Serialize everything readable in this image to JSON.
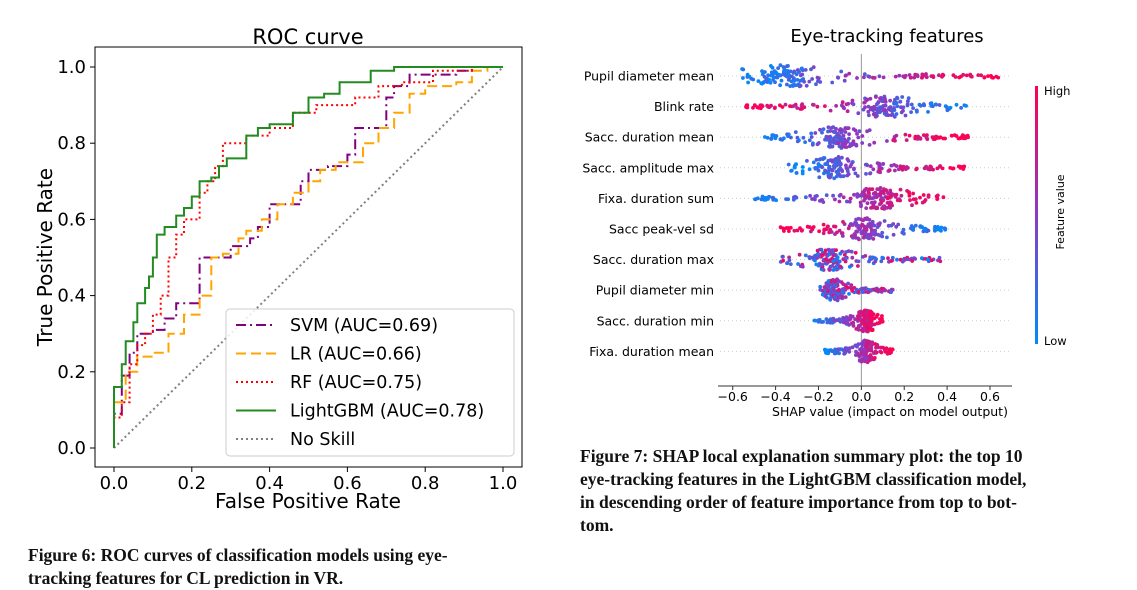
{
  "chart_data": [
    {
      "type": "line",
      "title": "ROC curve",
      "xlabel": "False Positive Rate",
      "ylabel": "True Positive Rate",
      "xlim": [
        0.0,
        1.0
      ],
      "ylim": [
        0.0,
        1.0
      ],
      "xticks": [
        "0.0",
        "0.2",
        "0.4",
        "0.6",
        "0.8",
        "1.0"
      ],
      "yticks": [
        "0.0",
        "0.2",
        "0.4",
        "0.6",
        "0.8",
        "1.0"
      ],
      "grid": false,
      "legend_position": "lower-right",
      "series": [
        {
          "name": "SVM",
          "label": "SVM (AUC=0.69)",
          "color": "#800080",
          "dash": "dashdot",
          "points": [
            [
              0,
              0
            ],
            [
              0,
              0.09
            ],
            [
              0.02,
              0.09
            ],
            [
              0.02,
              0.19
            ],
            [
              0.04,
              0.19
            ],
            [
              0.04,
              0.25
            ],
            [
              0.06,
              0.25
            ],
            [
              0.06,
              0.3
            ],
            [
              0.1,
              0.3
            ],
            [
              0.1,
              0.31
            ],
            [
              0.13,
              0.31
            ],
            [
              0.13,
              0.34
            ],
            [
              0.16,
              0.34
            ],
            [
              0.16,
              0.38
            ],
            [
              0.22,
              0.38
            ],
            [
              0.22,
              0.5
            ],
            [
              0.3,
              0.5
            ],
            [
              0.3,
              0.53
            ],
            [
              0.35,
              0.53
            ],
            [
              0.35,
              0.55
            ],
            [
              0.37,
              0.55
            ],
            [
              0.37,
              0.58
            ],
            [
              0.4,
              0.58
            ],
            [
              0.4,
              0.64
            ],
            [
              0.48,
              0.64
            ],
            [
              0.48,
              0.7
            ],
            [
              0.5,
              0.7
            ],
            [
              0.5,
              0.73
            ],
            [
              0.55,
              0.73
            ],
            [
              0.55,
              0.74
            ],
            [
              0.6,
              0.74
            ],
            [
              0.6,
              0.77
            ],
            [
              0.62,
              0.77
            ],
            [
              0.62,
              0.84
            ],
            [
              0.7,
              0.84
            ],
            [
              0.7,
              0.92
            ],
            [
              0.72,
              0.92
            ],
            [
              0.72,
              0.95
            ],
            [
              0.76,
              0.95
            ],
            [
              0.76,
              0.98
            ],
            [
              0.88,
              0.98
            ],
            [
              0.88,
              0.99
            ],
            [
              0.92,
              0.99
            ],
            [
              0.92,
              1.0
            ],
            [
              1.0,
              1.0
            ]
          ]
        },
        {
          "name": "LR",
          "label": "LR (AUC=0.66)",
          "color": "#FFA500",
          "dash": "dashed",
          "points": [
            [
              0,
              0
            ],
            [
              0,
              0.12
            ],
            [
              0.03,
              0.12
            ],
            [
              0.03,
              0.2
            ],
            [
              0.06,
              0.2
            ],
            [
              0.06,
              0.24
            ],
            [
              0.1,
              0.24
            ],
            [
              0.1,
              0.25
            ],
            [
              0.14,
              0.25
            ],
            [
              0.14,
              0.3
            ],
            [
              0.18,
              0.3
            ],
            [
              0.18,
              0.35
            ],
            [
              0.22,
              0.35
            ],
            [
              0.22,
              0.4
            ],
            [
              0.25,
              0.4
            ],
            [
              0.25,
              0.5
            ],
            [
              0.28,
              0.5
            ],
            [
              0.28,
              0.51
            ],
            [
              0.32,
              0.51
            ],
            [
              0.32,
              0.55
            ],
            [
              0.34,
              0.55
            ],
            [
              0.34,
              0.57
            ],
            [
              0.38,
              0.57
            ],
            [
              0.38,
              0.6
            ],
            [
              0.42,
              0.6
            ],
            [
              0.42,
              0.64
            ],
            [
              0.46,
              0.64
            ],
            [
              0.46,
              0.67
            ],
            [
              0.5,
              0.67
            ],
            [
              0.5,
              0.7
            ],
            [
              0.53,
              0.7
            ],
            [
              0.53,
              0.73
            ],
            [
              0.57,
              0.73
            ],
            [
              0.57,
              0.75
            ],
            [
              0.64,
              0.75
            ],
            [
              0.64,
              0.8
            ],
            [
              0.68,
              0.8
            ],
            [
              0.68,
              0.84
            ],
            [
              0.72,
              0.84
            ],
            [
              0.72,
              0.88
            ],
            [
              0.76,
              0.88
            ],
            [
              0.76,
              0.93
            ],
            [
              0.8,
              0.93
            ],
            [
              0.8,
              0.95
            ],
            [
              0.88,
              0.95
            ],
            [
              0.88,
              0.96
            ],
            [
              0.92,
              0.96
            ],
            [
              0.92,
              0.99
            ],
            [
              0.96,
              0.99
            ],
            [
              0.96,
              1.0
            ],
            [
              1.0,
              1.0
            ]
          ]
        },
        {
          "name": "RF",
          "label": "RF (AUC=0.75)",
          "color": "#FF0000",
          "dash": "dotted",
          "points": [
            [
              0,
              0
            ],
            [
              0,
              0.08
            ],
            [
              0.02,
              0.08
            ],
            [
              0.02,
              0.12
            ],
            [
              0.04,
              0.12
            ],
            [
              0.04,
              0.22
            ],
            [
              0.06,
              0.22
            ],
            [
              0.06,
              0.27
            ],
            [
              0.08,
              0.27
            ],
            [
              0.08,
              0.3
            ],
            [
              0.1,
              0.3
            ],
            [
              0.1,
              0.35
            ],
            [
              0.12,
              0.35
            ],
            [
              0.12,
              0.4
            ],
            [
              0.14,
              0.4
            ],
            [
              0.14,
              0.5
            ],
            [
              0.16,
              0.5
            ],
            [
              0.16,
              0.56
            ],
            [
              0.18,
              0.56
            ],
            [
              0.18,
              0.6
            ],
            [
              0.22,
              0.6
            ],
            [
              0.22,
              0.67
            ],
            [
              0.24,
              0.67
            ],
            [
              0.24,
              0.7
            ],
            [
              0.26,
              0.7
            ],
            [
              0.26,
              0.74
            ],
            [
              0.28,
              0.74
            ],
            [
              0.28,
              0.8
            ],
            [
              0.34,
              0.8
            ],
            [
              0.34,
              0.82
            ],
            [
              0.4,
              0.82
            ],
            [
              0.4,
              0.84
            ],
            [
              0.46,
              0.84
            ],
            [
              0.46,
              0.88
            ],
            [
              0.52,
              0.88
            ],
            [
              0.52,
              0.9
            ],
            [
              0.62,
              0.9
            ],
            [
              0.62,
              0.92
            ],
            [
              0.68,
              0.92
            ],
            [
              0.68,
              0.95
            ],
            [
              0.74,
              0.95
            ],
            [
              0.74,
              0.96
            ],
            [
              0.82,
              0.96
            ],
            [
              0.82,
              0.99
            ],
            [
              0.92,
              0.99
            ],
            [
              0.92,
              1.0
            ],
            [
              1.0,
              1.0
            ]
          ]
        },
        {
          "name": "LightGBM",
          "label": "LightGBM (AUC=0.78)",
          "color": "#228B22",
          "dash": "solid",
          "points": [
            [
              0,
              0
            ],
            [
              0,
              0.16
            ],
            [
              0.02,
              0.16
            ],
            [
              0.02,
              0.22
            ],
            [
              0.03,
              0.22
            ],
            [
              0.03,
              0.28
            ],
            [
              0.05,
              0.28
            ],
            [
              0.05,
              0.33
            ],
            [
              0.06,
              0.33
            ],
            [
              0.06,
              0.38
            ],
            [
              0.08,
              0.38
            ],
            [
              0.08,
              0.42
            ],
            [
              0.09,
              0.42
            ],
            [
              0.09,
              0.45
            ],
            [
              0.1,
              0.45
            ],
            [
              0.1,
              0.5
            ],
            [
              0.11,
              0.5
            ],
            [
              0.11,
              0.56
            ],
            [
              0.13,
              0.56
            ],
            [
              0.13,
              0.58
            ],
            [
              0.16,
              0.58
            ],
            [
              0.16,
              0.61
            ],
            [
              0.18,
              0.61
            ],
            [
              0.18,
              0.63
            ],
            [
              0.2,
              0.63
            ],
            [
              0.2,
              0.66
            ],
            [
              0.22,
              0.66
            ],
            [
              0.22,
              0.7
            ],
            [
              0.25,
              0.7
            ],
            [
              0.25,
              0.71
            ],
            [
              0.27,
              0.71
            ],
            [
              0.27,
              0.74
            ],
            [
              0.29,
              0.74
            ],
            [
              0.29,
              0.76
            ],
            [
              0.34,
              0.76
            ],
            [
              0.34,
              0.82
            ],
            [
              0.37,
              0.82
            ],
            [
              0.37,
              0.84
            ],
            [
              0.4,
              0.84
            ],
            [
              0.4,
              0.85
            ],
            [
              0.46,
              0.85
            ],
            [
              0.46,
              0.88
            ],
            [
              0.5,
              0.88
            ],
            [
              0.5,
              0.92
            ],
            [
              0.54,
              0.92
            ],
            [
              0.54,
              0.93
            ],
            [
              0.58,
              0.93
            ],
            [
              0.58,
              0.96
            ],
            [
              0.66,
              0.96
            ],
            [
              0.66,
              0.99
            ],
            [
              0.72,
              0.99
            ],
            [
              0.72,
              1.0
            ],
            [
              1.0,
              1.0
            ]
          ]
        },
        {
          "name": "No Skill",
          "label": "No Skill",
          "color": "#808080",
          "dash": "dotted",
          "points": [
            [
              0,
              0
            ],
            [
              1,
              1
            ]
          ]
        }
      ]
    },
    {
      "type": "scatter",
      "subtype": "shap-beeswarm",
      "title": "Eye-tracking features",
      "xlabel": "SHAP value (impact on model output)",
      "xlim": [
        -0.65,
        0.67
      ],
      "xticks": [
        -0.6,
        -0.4,
        -0.2,
        0.0,
        0.2,
        0.4,
        0.6
      ],
      "xtick_labels": [
        "−0.6",
        "−0.4",
        "−0.2",
        "0.0",
        "0.2",
        "0.4",
        "0.6"
      ],
      "colorbar": {
        "label": "Feature value",
        "high": "High",
        "low": "Low",
        "high_color": "#ff0052",
        "low_color": "#008bfb"
      },
      "features": [
        {
          "name": "Pupil diameter mean",
          "min": -0.57,
          "max": 0.65,
          "center": -0.35,
          "low_side": "negative"
        },
        {
          "name": "Blink rate",
          "min": -0.55,
          "max": 0.5,
          "center": 0.1,
          "low_side": "positive"
        },
        {
          "name": "Sacc. duration mean",
          "min": -0.45,
          "max": 0.5,
          "center": -0.1,
          "low_side": "negative"
        },
        {
          "name": "Sacc. amplitude max",
          "min": -0.35,
          "max": 0.48,
          "center": -0.12,
          "low_side": "negative"
        },
        {
          "name": "Fixa. duration sum",
          "min": -0.5,
          "max": 0.42,
          "center": 0.08,
          "low_side": "negative"
        },
        {
          "name": "Sacc peak-vel sd",
          "min": -0.38,
          "max": 0.4,
          "center": 0.02,
          "low_side": "positive"
        },
        {
          "name": "Sacc. duration max",
          "min": -0.38,
          "max": 0.38,
          "center": -0.15,
          "low_side": "mixed"
        },
        {
          "name": "Pupil diameter min",
          "min": -0.2,
          "max": 0.15,
          "center": -0.12,
          "low_side": "mixed"
        },
        {
          "name": "Sacc. duration min",
          "min": -0.22,
          "max": 0.1,
          "center": 0.02,
          "low_side": "negative"
        },
        {
          "name": "Fixa. duration mean",
          "min": -0.17,
          "max": 0.15,
          "center": 0.02,
          "low_side": "negative"
        }
      ]
    }
  ],
  "captions": {
    "fig6": [
      "Figure 6: ROC curves of classification models using eye-",
      "tracking features for CL prediction in VR."
    ],
    "fig7": [
      "Figure 7: SHAP local explanation summary plot: the top 10",
      "eye-tracking features in the LightGBM classification model,",
      "in descending order of feature importance from top to bot-",
      "tom."
    ]
  }
}
